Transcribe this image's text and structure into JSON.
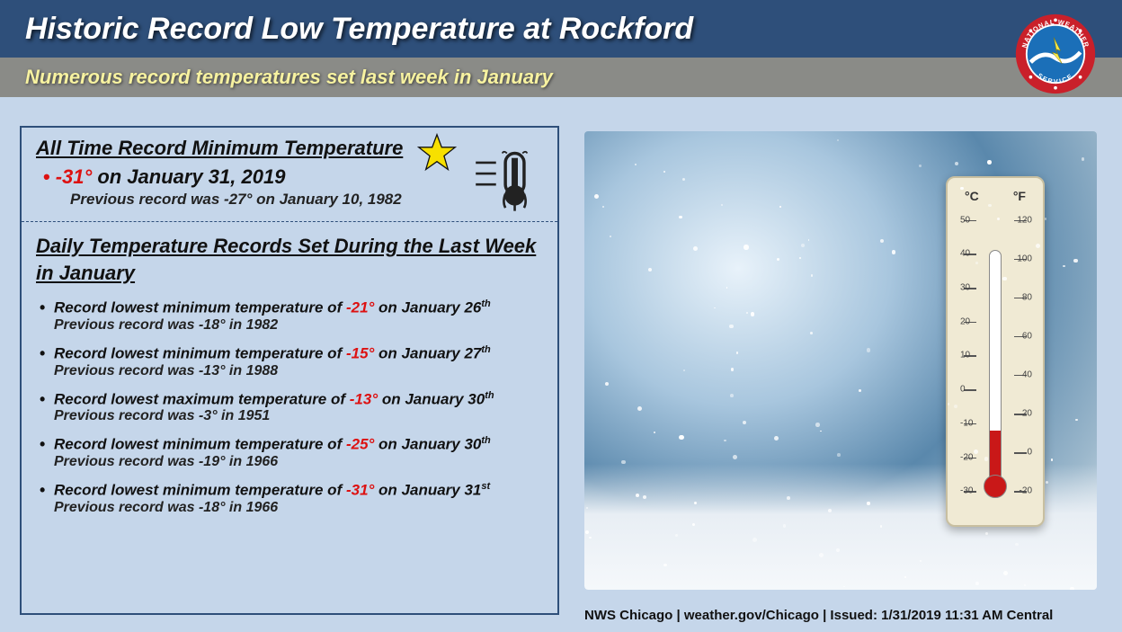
{
  "header": {
    "title": "Historic Record Low Temperature at Rockford",
    "subtitle": "Numerous record temperatures set last week in January",
    "title_bg": "#2e4f7a",
    "subtitle_bg": "#8a8b87",
    "title_color": "#ffffff",
    "subtitle_color": "#f7f2a0"
  },
  "logo": {
    "outer_text_top": "NATIONAL WEATHER",
    "outer_text_bottom": "SERVICE",
    "ring_color": "#c9202a",
    "inner_color": "#1b6fb8"
  },
  "section1": {
    "title": "All Time Record Minimum Temperature",
    "temp": "-31°",
    "date_text": "on January 31, 2019",
    "previous": "Previous record was -27° on January 10, 1982"
  },
  "section2": {
    "title": "Daily Temperature Records Set During the Last Week in January",
    "records": [
      {
        "prefix": "Record lowest minimum temperature of ",
        "temp": "-21°",
        "suffix": "on January 26",
        "ord": "th",
        "previous": "Previous record was -18° in 1982"
      },
      {
        "prefix": "Record lowest minimum temperature of ",
        "temp": "-15°",
        "suffix": "on January 27",
        "ord": "th",
        "previous": "Previous record was -13° in 1988"
      },
      {
        "prefix": "Record lowest maximum temperature of ",
        "temp": "-13°",
        "suffix": "on January 30",
        "ord": "th",
        "previous": "Previous record was -3° in 1951"
      },
      {
        "prefix": "Record lowest minimum temperature of ",
        "temp": "-25°",
        "suffix": "on January 30",
        "ord": "th",
        "previous": "Previous record was -19° in 1966"
      },
      {
        "prefix": "Record lowest minimum temperature of ",
        "temp": "-31°",
        "suffix": "on January 31",
        "ord": "st",
        "previous": "Previous record was -18° in 1966"
      }
    ]
  },
  "thermo_photo": {
    "c_label": "°C",
    "f_label": "°F",
    "c_ticks": [
      50,
      40,
      30,
      20,
      10,
      0,
      -10,
      -20,
      -30
    ],
    "f_ticks": [
      120,
      100,
      80,
      60,
      40,
      20,
      0,
      -20
    ],
    "board_color": "#f0ead4",
    "fluid_color": "#c91818"
  },
  "footer": {
    "text": "NWS Chicago | weather.gov/Chicago |  Issued: 1/31/2019 11:31 AM Central"
  },
  "colors": {
    "page_bg": "#c5d6ea",
    "panel_border": "#2e4f7a",
    "accent_red": "#d11"
  }
}
